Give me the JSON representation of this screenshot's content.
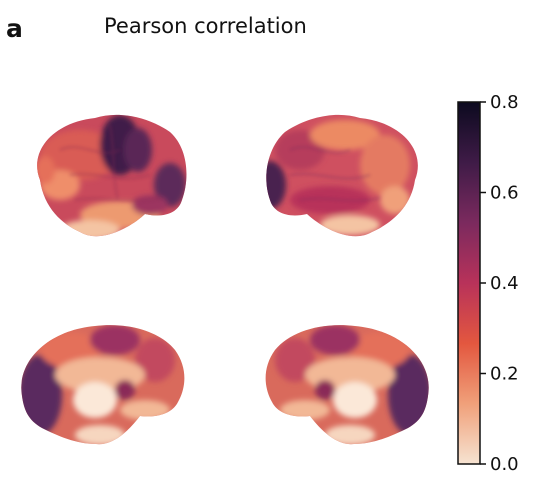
{
  "figure": {
    "panel_label": "a",
    "title": "Pearson correlation"
  },
  "colorbar": {
    "min": 0.0,
    "max": 0.8,
    "ticks": [
      {
        "value": 0.8,
        "label": "0.8"
      },
      {
        "value": 0.6,
        "label": "0.6"
      },
      {
        "value": 0.4,
        "label": "0.4"
      },
      {
        "value": 0.2,
        "label": "0.2"
      },
      {
        "value": 0.0,
        "label": "0.0"
      }
    ],
    "colormap": [
      "#f6e3d1",
      "#f0a07a",
      "#e3573f",
      "#b8325a",
      "#7b2a5e",
      "#3f1b47",
      "#0c0a1f"
    ]
  },
  "brain_views": [
    {
      "name": "left-lateral-brain"
    },
    {
      "name": "right-lateral-brain"
    },
    {
      "name": "left-medial-brain"
    },
    {
      "name": "right-medial-brain"
    }
  ]
}
